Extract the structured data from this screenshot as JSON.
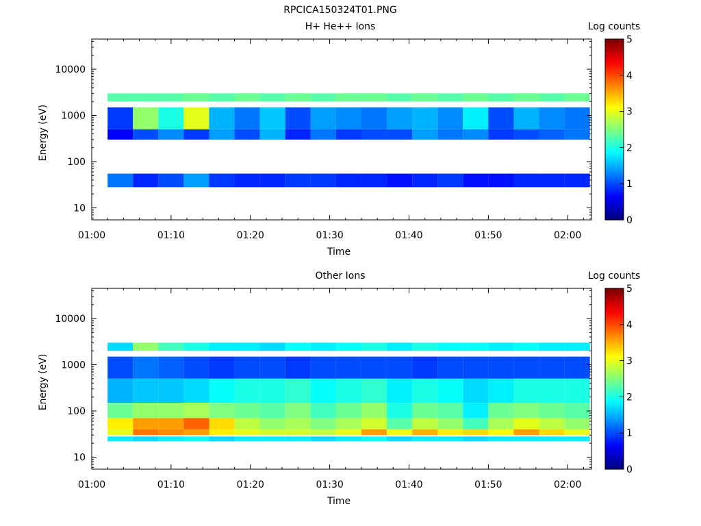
{
  "figure_title": "RPCICA150324T01.PNG",
  "chart_data": [
    {
      "type": "heatmap",
      "title": "H+ He++ Ions",
      "xlabel": "Time",
      "ylabel": "Energy (eV)",
      "y_scale": "log",
      "ylim": [
        5.5,
        45000
      ],
      "xlim": [
        "01:00",
        "02:03"
      ],
      "x_ticks": [
        "01:00",
        "01:10",
        "01:20",
        "01:30",
        "01:40",
        "01:50",
        "02:00"
      ],
      "y_ticks": [
        "10",
        "100",
        "1000",
        "10000"
      ],
      "colorbar": {
        "label": "Log counts",
        "ticks": [
          "0",
          "1",
          "2",
          "3",
          "4",
          "5"
        ],
        "range": [
          0,
          5
        ],
        "colormap": "jet"
      },
      "time_bins_start_min": [
        2.0,
        5.2,
        8.4,
        11.6,
        14.8,
        18.0,
        21.2,
        24.4,
        27.6,
        30.8,
        34.0,
        37.2,
        40.4,
        43.6,
        46.8,
        50.0,
        53.2,
        56.4,
        59.6
      ],
      "bands": [
        {
          "e_low": 2000,
          "e_high": 3000,
          "log_counts": [
            2.3,
            2.3,
            2.3,
            2.4,
            2.3,
            2.4,
            2.3,
            2.4,
            2.3,
            2.4,
            2.4,
            2.3,
            2.4,
            2.3,
            2.4,
            2.3,
            2.4,
            2.3,
            2.4
          ]
        },
        {
          "e_low": 500,
          "e_high": 1500,
          "log_counts": [
            0.9,
            2.6,
            2.0,
            3.0,
            1.5,
            1.2,
            1.6,
            1.0,
            1.4,
            1.3,
            1.2,
            1.4,
            1.5,
            1.3,
            1.8,
            1.0,
            1.5,
            1.3,
            1.2
          ]
        },
        {
          "e_low": 300,
          "e_high": 500,
          "log_counts": [
            0.6,
            1.0,
            1.3,
            0.9,
            1.4,
            1.0,
            1.5,
            0.8,
            1.2,
            0.9,
            1.0,
            1.0,
            1.4,
            1.2,
            1.3,
            0.9,
            1.0,
            1.1,
            1.2
          ]
        },
        {
          "e_low": 28,
          "e_high": 55,
          "log_counts": [
            1.2,
            0.8,
            1.0,
            1.4,
            0.9,
            0.8,
            0.8,
            0.9,
            0.9,
            0.8,
            0.8,
            0.7,
            0.8,
            0.9,
            0.7,
            0.7,
            0.8,
            0.8,
            0.8
          ]
        }
      ]
    },
    {
      "type": "heatmap",
      "title": "Other Ions",
      "xlabel": "Time",
      "ylabel": "Energy (eV)",
      "y_scale": "log",
      "ylim": [
        5.5,
        45000
      ],
      "xlim": [
        "01:00",
        "02:03"
      ],
      "x_ticks": [
        "01:00",
        "01:10",
        "01:20",
        "01:30",
        "01:40",
        "01:50",
        "02:00"
      ],
      "y_ticks": [
        "10",
        "100",
        "1000",
        "10000"
      ],
      "colorbar": {
        "label": "Log counts",
        "ticks": [
          "0",
          "1",
          "2",
          "3",
          "4",
          "5"
        ],
        "range": [
          0,
          5
        ],
        "colormap": "jet"
      },
      "time_bins_start_min": [
        2.0,
        5.2,
        8.4,
        11.6,
        14.8,
        18.0,
        21.2,
        24.4,
        27.6,
        30.8,
        34.0,
        37.2,
        40.4,
        43.6,
        46.8,
        50.0,
        53.2,
        56.4,
        59.6
      ],
      "bands": [
        {
          "e_low": 2000,
          "e_high": 3000,
          "log_counts": [
            1.7,
            2.6,
            2.2,
            2.0,
            1.8,
            1.8,
            1.7,
            1.9,
            1.8,
            1.9,
            2.0,
            1.8,
            2.0,
            1.9,
            1.9,
            1.8,
            1.9,
            1.8,
            1.8
          ]
        },
        {
          "e_low": 500,
          "e_high": 1500,
          "log_counts": [
            1.0,
            1.2,
            1.1,
            1.0,
            0.9,
            1.0,
            1.0,
            0.9,
            1.0,
            1.0,
            1.0,
            1.0,
            0.9,
            1.0,
            1.0,
            1.0,
            1.0,
            1.0,
            1.0
          ]
        },
        {
          "e_low": 150,
          "e_high": 500,
          "log_counts": [
            1.5,
            1.6,
            1.6,
            1.7,
            1.9,
            2.0,
            2.0,
            2.1,
            1.9,
            2.0,
            2.1,
            1.8,
            2.0,
            1.9,
            1.7,
            1.8,
            2.0,
            2.0,
            2.0
          ]
        },
        {
          "e_low": 70,
          "e_high": 150,
          "log_counts": [
            2.4,
            2.6,
            2.6,
            2.7,
            2.5,
            2.4,
            2.3,
            2.5,
            2.2,
            2.4,
            2.6,
            2.0,
            2.4,
            2.3,
            1.8,
            2.4,
            2.5,
            2.4,
            2.3
          ]
        },
        {
          "e_low": 40,
          "e_high": 70,
          "log_counts": [
            3.2,
            3.6,
            3.6,
            3.9,
            3.3,
            2.8,
            2.6,
            2.7,
            2.5,
            2.7,
            2.9,
            2.3,
            2.8,
            2.6,
            2.2,
            2.7,
            3.0,
            2.8,
            2.6
          ]
        },
        {
          "e_low": 30,
          "e_high": 40,
          "log_counts": [
            3.0,
            3.8,
            3.7,
            3.6,
            3.2,
            3.0,
            2.9,
            2.9,
            2.8,
            3.0,
            3.6,
            3.1,
            3.5,
            3.2,
            3.3,
            3.1,
            3.6,
            3.3,
            3.0
          ]
        },
        {
          "e_low": 22,
          "e_high": 28,
          "log_counts": [
            1.8,
            1.7,
            1.8,
            1.9,
            1.7,
            1.8,
            1.8,
            1.8,
            1.7,
            1.8,
            1.9,
            1.7,
            1.8,
            1.8,
            1.7,
            1.8,
            1.8,
            1.8,
            1.8
          ]
        }
      ]
    }
  ]
}
